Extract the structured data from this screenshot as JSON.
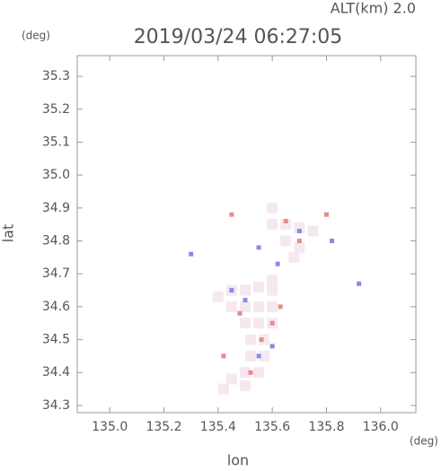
{
  "chart_data": {
    "type": "scatter",
    "title": "2019/03/24 06:27:05",
    "subtitle": "ALT(km) 2.0",
    "unit_top": "(deg)",
    "unit_bottom": "(deg)",
    "x_label": "lon",
    "y_label": "lat",
    "xlim": [
      134.88,
      136.13
    ],
    "ylim": [
      34.278,
      35.363
    ],
    "xticks": [
      {
        "value": 135,
        "label": "135.0"
      },
      135.2,
      135.4,
      135.6,
      135.8,
      {
        "value": 136,
        "label": "136.0"
      }
    ],
    "yticks": [
      34.3,
      34.4,
      34.5,
      34.6,
      34.7,
      34.8,
      34.9,
      {
        "value": 35,
        "label": "35.0"
      },
      35.1,
      35.2,
      35.3
    ],
    "series": [
      {
        "color": "#f6e8f0",
        "size": 12,
        "x": [
          135.45,
          135.5,
          135.55,
          135.6,
          135.45,
          135.5,
          135.55,
          135.6,
          135.5,
          135.55,
          135.6,
          135.52,
          135.57,
          135.52,
          135.57,
          135.5,
          135.55,
          135.45,
          135.5,
          135.42,
          135.6,
          135.4,
          135.6,
          135.65,
          135.7,
          135.75,
          135.65,
          135.7,
          135.6,
          135.68
        ],
        "y": [
          34.65,
          34.65,
          34.66,
          34.65,
          34.6,
          34.6,
          34.6,
          34.6,
          34.55,
          34.55,
          34.55,
          34.5,
          34.5,
          34.45,
          34.45,
          34.4,
          34.4,
          34.38,
          34.36,
          34.35,
          34.68,
          34.63,
          34.85,
          34.85,
          34.84,
          34.83,
          34.8,
          34.78,
          34.9,
          34.75
        ]
      },
      {
        "color": "#e88a8a",
        "size": 5,
        "x": [
          135.65,
          135.56,
          135.52,
          135.48,
          135.6,
          135.45,
          135.8,
          135.42,
          135.63,
          135.7
        ],
        "y": [
          34.86,
          34.5,
          34.4,
          34.58,
          34.55,
          34.88,
          34.88,
          34.45,
          34.6,
          34.8
        ]
      },
      {
        "color": "#8a8ae8",
        "size": 5,
        "x": [
          135.7,
          135.5,
          135.55,
          135.6,
          135.45,
          135.3,
          135.92,
          135.82,
          135.55,
          135.62
        ],
        "y": [
          34.83,
          34.62,
          34.45,
          34.48,
          34.65,
          34.76,
          34.67,
          34.8,
          34.78,
          34.73
        ]
      }
    ]
  }
}
